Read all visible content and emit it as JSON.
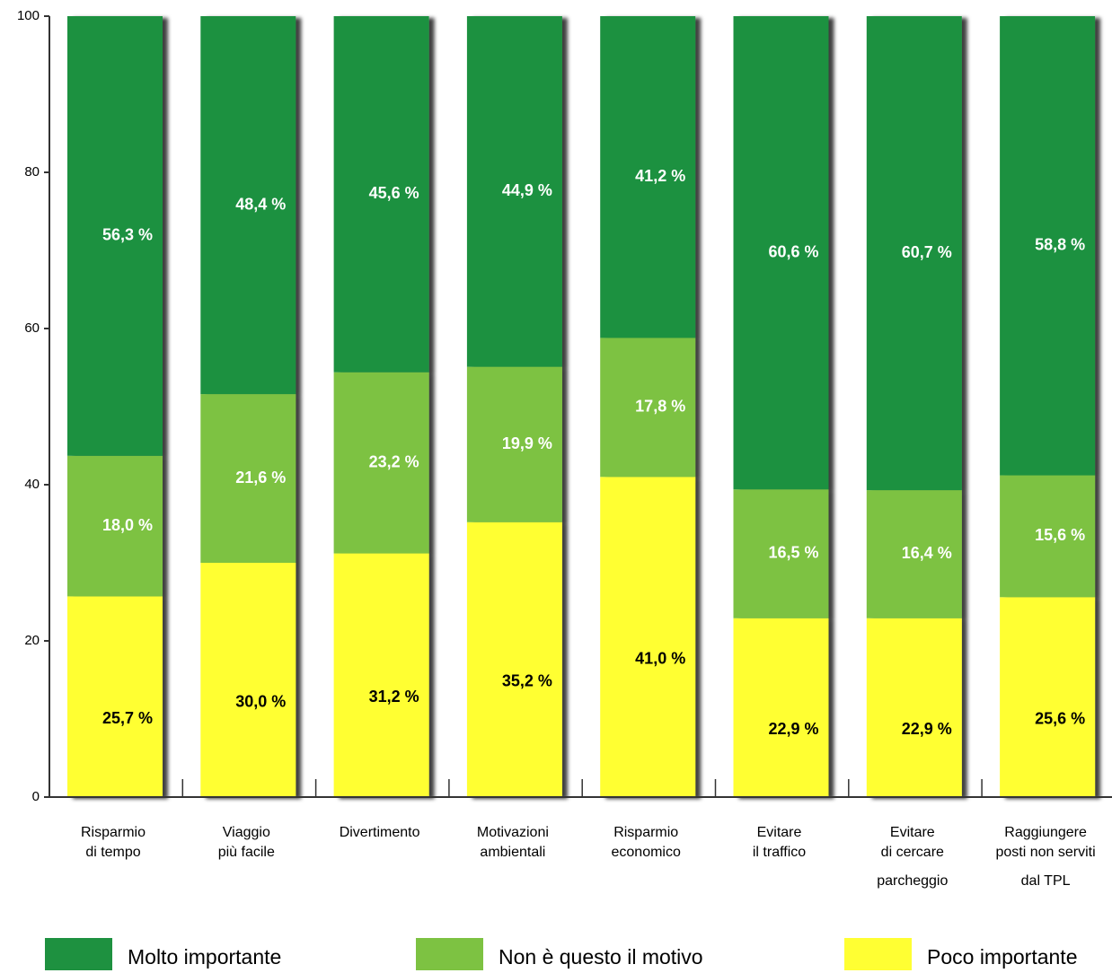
{
  "chart_data": {
    "type": "stacked_bar",
    "categories": [
      "Risparmio\ndi tempo",
      "Viaggio\npiù facile",
      "Divertimento",
      "Motivazioni\nambientali",
      "Risparmio\neconomico",
      "Evitare\nil traffico",
      "Evitare\ndi cercare\nparcheggio",
      "Raggiungere\nposti non serviti\ndal TPL"
    ],
    "series": [
      {
        "name": "Molto importante",
        "color": "#1e9140",
        "values": [
          56.3,
          48.4,
          45.6,
          44.9,
          41.2,
          60.6,
          60.7,
          58.8
        ],
        "value_labels": [
          "56,3 %",
          "48,4 %",
          "45,6 %",
          "44,9 %",
          "41,2 %",
          "60,6 %",
          "60,7 %",
          "58,8 %"
        ]
      },
      {
        "name": "Non è questo il motivo",
        "color": "#7dc242",
        "values": [
          18.0,
          21.6,
          23.2,
          19.9,
          17.8,
          16.5,
          16.4,
          15.6
        ],
        "value_labels": [
          "18,0 %",
          "21,6 %",
          "23,2 %",
          "19,9 %",
          "17,8 %",
          "16,5 %",
          "16,4 %",
          "15,6 %"
        ]
      },
      {
        "name": "Poco importante",
        "color": "#ffff33",
        "values": [
          25.7,
          30.0,
          31.2,
          35.2,
          41.0,
          22.9,
          22.9,
          25.6
        ],
        "value_labels": [
          "25,7 %",
          "30,0 %",
          "31,2 %",
          "35,2 %",
          "41,0 %",
          "22,9 %",
          "22,9 %",
          "25,6 %"
        ]
      }
    ],
    "ylim": [
      0,
      100
    ],
    "yticks": [
      0,
      20,
      40,
      60,
      80,
      100
    ]
  }
}
